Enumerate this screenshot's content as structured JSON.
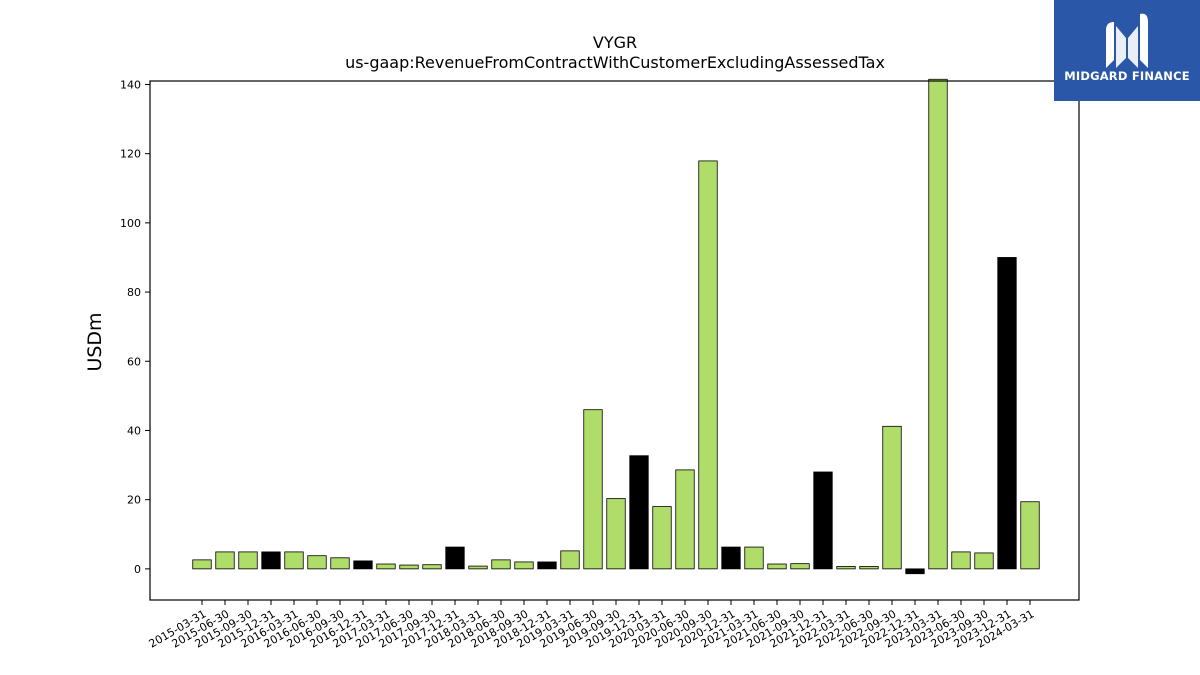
{
  "logo": {
    "text": "MIDGARD FINANCE",
    "icon": "midgard-logo-icon",
    "background": "#2a57a8"
  },
  "chart_data": {
    "type": "bar",
    "title": "VYGR",
    "subtitle": "us-gaap:RevenueFromContractWithCustomerExcludingAssessedTax",
    "xlabel": "",
    "ylabel": "USDm",
    "ylim": [
      -9,
      141
    ],
    "yticks": [
      0,
      20,
      40,
      60,
      80,
      100,
      120,
      140
    ],
    "grid": false,
    "colors": {
      "standard": "#b0dc6a",
      "highlight": "#000000",
      "edge": "#000000"
    },
    "categories": [
      "2015-03-31",
      "2015-06-30",
      "2015-09-30",
      "2015-12-31",
      "2016-03-31",
      "2016-06-30",
      "2016-09-30",
      "2016-12-31",
      "2017-03-31",
      "2017-06-30",
      "2017-09-30",
      "2017-12-31",
      "2018-03-31",
      "2018-06-30",
      "2018-09-30",
      "2018-12-31",
      "2019-03-31",
      "2019-06-30",
      "2019-09-30",
      "2019-12-31",
      "2020-03-31",
      "2020-06-30",
      "2020-09-30",
      "2020-12-31",
      "2021-03-31",
      "2021-06-30",
      "2021-09-30",
      "2021-12-31",
      "2022-03-31",
      "2022-06-30",
      "2022-09-30",
      "2022-12-31",
      "2023-03-31",
      "2023-06-30",
      "2023-09-30",
      "2023-12-31",
      "2024-03-31"
    ],
    "values": [
      2.6,
      4.9,
      4.9,
      4.9,
      4.9,
      3.8,
      3.2,
      2.3,
      1.4,
      1.1,
      1.2,
      6.3,
      0.8,
      2.6,
      2.0,
      2.0,
      5.2,
      46.0,
      20.3,
      32.7,
      18.0,
      28.6,
      117.9,
      6.3,
      6.3,
      1.4,
      1.5,
      28.0,
      0.7,
      0.7,
      41.2,
      -1.4,
      141.5,
      4.9,
      4.6,
      90.0,
      19.4
    ],
    "highlight": [
      false,
      false,
      false,
      true,
      false,
      false,
      false,
      true,
      false,
      false,
      false,
      true,
      false,
      false,
      false,
      true,
      false,
      false,
      false,
      true,
      false,
      false,
      false,
      true,
      false,
      false,
      false,
      true,
      false,
      false,
      false,
      true,
      false,
      false,
      false,
      true,
      false
    ]
  }
}
